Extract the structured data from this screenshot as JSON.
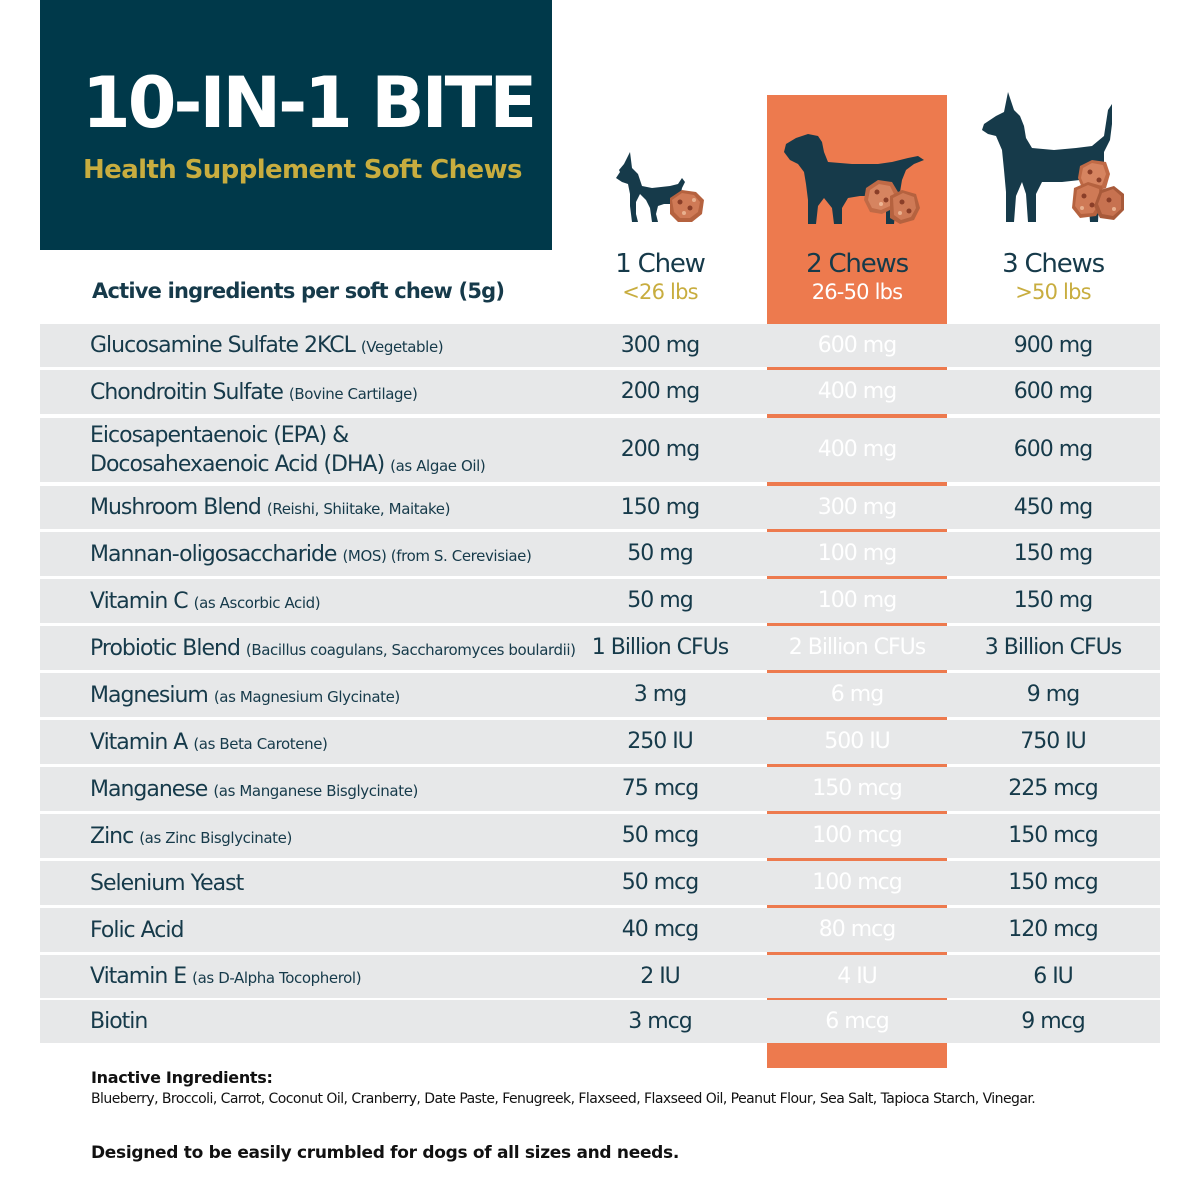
{
  "header": {
    "title": "10-IN-1 BITE",
    "subtitle": "Health Supplement Soft Chews"
  },
  "colors": {
    "navy": "#00394a",
    "gold": "#c8ad3f",
    "orange": "#ed7a4e",
    "row_gray": "#e7e8e9",
    "text": "#163a4a"
  },
  "active_label": "Active ingredients per soft chew (5g)",
  "dosage_columns": [
    {
      "chews": "1 Chew",
      "weight": "<26 lbs",
      "dog_icon": "small-dog-icon"
    },
    {
      "chews": "2 Chews",
      "weight": "26-50 lbs",
      "dog_icon": "medium-dog-icon"
    },
    {
      "chews": "3 Chews",
      "weight": ">50 lbs",
      "dog_icon": "large-dog-icon"
    }
  ],
  "ingredients": [
    {
      "name": "Glucosamine Sulfate 2KCL",
      "note": "(Vegetable)",
      "values": [
        "300 mg",
        "600 mg",
        "900 mg"
      ]
    },
    {
      "name": "Chondroitin Sulfate",
      "note": "(Bovine Cartilage)",
      "values": [
        "200 mg",
        "400 mg",
        "600 mg"
      ]
    },
    {
      "name": "Eicosapentaenoic (EPA) &",
      "name_line2": "Docosahexaenoic Acid (DHA)",
      "note": "(as Algae Oil)",
      "values": [
        "200 mg",
        "400 mg",
        "600 mg"
      ]
    },
    {
      "name": "Mushroom Blend",
      "note": "(Reishi, Shiitake, Maitake)",
      "values": [
        "150 mg",
        "300 mg",
        "450 mg"
      ]
    },
    {
      "name": "Mannan-oligosaccharide",
      "note": "(MOS) (from S. Cerevisiae)",
      "values": [
        "50 mg",
        "100 mg",
        "150 mg"
      ]
    },
    {
      "name": "Vitamin C",
      "note": "(as Ascorbic Acid)",
      "values": [
        "50 mg",
        "100 mg",
        "150 mg"
      ]
    },
    {
      "name": "Probiotic Blend",
      "note": "(Bacillus coagulans, Saccharomyces boulardii)",
      "values": [
        "1 Billion CFUs",
        "2 Billion CFUs",
        "3 Billion CFUs"
      ]
    },
    {
      "name": "Magnesium",
      "note": "(as Magnesium Glycinate)",
      "values": [
        "3 mg",
        "6 mg",
        "9 mg"
      ]
    },
    {
      "name": "Vitamin A",
      "note": "(as Beta Carotene)",
      "values": [
        "250 IU",
        "500 IU",
        "750 IU"
      ]
    },
    {
      "name": "Manganese",
      "note": "(as Manganese Bisglycinate)",
      "values": [
        "75 mcg",
        "150 mcg",
        "225 mcg"
      ]
    },
    {
      "name": "Zinc",
      "note": "(as Zinc Bisglycinate)",
      "values": [
        "50 mcg",
        "100 mcg",
        "150 mcg"
      ]
    },
    {
      "name": "Selenium Yeast",
      "note": "",
      "values": [
        "50 mcg",
        "100 mcg",
        "150 mcg"
      ]
    },
    {
      "name": "Folic Acid",
      "note": "",
      "values": [
        "40 mcg",
        "80 mcg",
        "120 mcg"
      ]
    },
    {
      "name": "Vitamin E",
      "note": "(as D-Alpha Tocopherol)",
      "values": [
        "2 IU",
        "4 IU",
        "6 IU"
      ]
    },
    {
      "name": "Biotin",
      "note": "",
      "values": [
        "3 mcg",
        "6 mcg",
        "9 mcg"
      ]
    }
  ],
  "inactive": {
    "title": "Inactive Ingredients:",
    "text": "Blueberry, Broccoli, Carrot, Coconut Oil, Cranberry, Date Paste, Fenugreek, Flaxseed, Flaxseed Oil, Peanut Flour, Sea Salt, Tapioca Starch, Vinegar."
  },
  "footer": "Designed to be easily crumbled for dogs of all sizes and needs."
}
